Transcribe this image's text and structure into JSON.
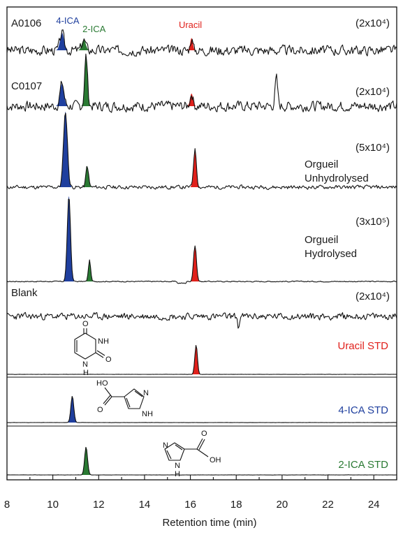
{
  "chart_data": {
    "type": "line",
    "xlabel": "Retention time (min)",
    "xlim": [
      8,
      25
    ],
    "xticks": [
      "8",
      "10",
      "12",
      "14",
      "16",
      "18",
      "20",
      "22",
      "24"
    ],
    "peak_labels": [
      {
        "text": "4-ICA",
        "x": 10.5,
        "color": "#1f3f9e"
      },
      {
        "text": "2-ICA",
        "x": 11.6,
        "color": "#2a7a33"
      },
      {
        "text": "Uracil",
        "x": 16.0,
        "color": "#e0201b"
      }
    ],
    "colors": {
      "4-ICA": "#1f3f9e",
      "2-ICA": "#2a7a33",
      "Uracil": "#e0201b"
    },
    "traces": [
      {
        "left_label": "A0106",
        "label_lines": [],
        "label_color": "#1a1a1a",
        "scale": "(2x10⁴)",
        "peaks": [
          {
            "x": 10.4,
            "h": 0.5,
            "w": 0.12,
            "c": "4-ICA"
          },
          {
            "x": 11.35,
            "h": 0.3,
            "w": 0.12,
            "c": "2-ICA"
          },
          {
            "x": 16.05,
            "h": 0.35,
            "w": 0.08,
            "c": "Uracil"
          }
        ],
        "noise": 0.14,
        "seed": 3
      },
      {
        "left_label": "C0107",
        "label_lines": [],
        "label_color": "#1a1a1a",
        "scale": "(2x10⁴)",
        "peaks": [
          {
            "x": 10.4,
            "h": 0.45,
            "w": 0.12,
            "c": "4-ICA"
          },
          {
            "x": 11.45,
            "h": 1.0,
            "w": 0.09,
            "c": "2-ICA"
          },
          {
            "x": 16.05,
            "h": 0.25,
            "w": 0.09,
            "c": "Uracil"
          },
          {
            "x": 19.75,
            "h": 0.55,
            "w": 0.08,
            "c": null
          }
        ],
        "noise": 0.1,
        "seed": 7
      },
      {
        "left_label": "",
        "label_lines": [
          "Orgueil",
          "Unhydrolysed"
        ],
        "label_color": "#1a1a1a",
        "scale": "(5x10⁴)",
        "peaks": [
          {
            "x": 10.55,
            "h": 1.0,
            "w": 0.12,
            "c": "4-ICA"
          },
          {
            "x": 11.5,
            "h": 0.28,
            "w": 0.08,
            "c": "2-ICA"
          },
          {
            "x": 16.2,
            "h": 0.5,
            "w": 0.09,
            "c": "Uracil"
          }
        ],
        "noise": 0.025,
        "seed": 11
      },
      {
        "left_label": "",
        "label_lines": [
          "Orgueil",
          "Hydrolysed"
        ],
        "label_color": "#1a1a1a",
        "scale": "(3x10⁵)",
        "peaks": [
          {
            "x": 10.7,
            "h": 1.0,
            "w": 0.1,
            "c": "4-ICA"
          },
          {
            "x": 11.6,
            "h": 0.25,
            "w": 0.07,
            "c": "2-ICA"
          },
          {
            "x": 16.2,
            "h": 0.42,
            "w": 0.09,
            "c": "Uracil"
          }
        ],
        "noise": 0.006,
        "seed": 17
      },
      {
        "left_label": "Blank",
        "label_lines": [],
        "label_color": "#1a1a1a",
        "scale": "(2x10⁴)",
        "peaks": [],
        "noise": 0.12,
        "seed": 23
      },
      {
        "left_label": "",
        "label_lines": [
          "Uracil STD"
        ],
        "label_color": "#e0201b",
        "scale": "",
        "peaks": [
          {
            "x": 16.25,
            "h": 1.0,
            "w": 0.08,
            "c": "Uracil"
          }
        ],
        "noise": 0.004,
        "seed": 29
      },
      {
        "left_label": "",
        "label_lines": [
          "4-ICA STD"
        ],
        "label_color": "#1f3f9e",
        "scale": "",
        "peaks": [
          {
            "x": 10.85,
            "h": 1.0,
            "w": 0.09,
            "c": "4-ICA"
          }
        ],
        "noise": 0.004,
        "seed": 31
      },
      {
        "left_label": "",
        "label_lines": [
          "2-ICA STD"
        ],
        "label_color": "#2a7a33",
        "scale": "",
        "peaks": [
          {
            "x": 11.45,
            "h": 1.0,
            "w": 0.09,
            "c": "2-ICA"
          }
        ],
        "noise": 0.004,
        "seed": 37
      }
    ],
    "structures": [
      {
        "name": "uracil",
        "labels": [
          "O",
          "NH",
          "O",
          "N",
          "H"
        ]
      },
      {
        "name": "4-ica",
        "labels": [
          "HO",
          "O",
          "N",
          "NH"
        ]
      },
      {
        "name": "2-ica",
        "labels": [
          "N",
          "O",
          "OH",
          "N",
          "H"
        ]
      }
    ]
  }
}
